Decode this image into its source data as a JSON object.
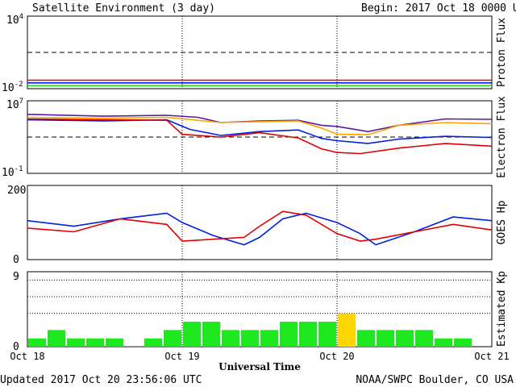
{
  "header": {
    "title": "Satellite Environment (3 day)",
    "begin": "Begin:  2017 Oct 18 0000 UTC"
  },
  "footer": {
    "updated": "Updated 2017 Oct 20 23:56:06 UTC",
    "source": "NOAA/SWPC Boulder, CO USA"
  },
  "x_axis": {
    "label": "Universal Time",
    "ticks": [
      "Oct 18",
      "Oct 19",
      "Oct 20",
      "Oct 21"
    ],
    "range_days": [
      0,
      3
    ]
  },
  "colors": {
    "red": "#e00000",
    "blue": "#0020e0",
    "green": "#20e020",
    "orange": "#ffa500",
    "purple": "#5a1a9a",
    "kp_green": "#1ee81e",
    "kp_yellow": "#ffd700"
  },
  "chart_data": [
    {
      "type": "line",
      "title": "Proton Flux",
      "ylabel": "Proton Flux",
      "yscale": "log",
      "ylim": [
        0.01,
        10000
      ],
      "ytick_labels": [
        {
          "base": "10",
          "exp": "4"
        },
        {
          "base": "10",
          "exp": "-2"
        }
      ],
      "threshold": 10,
      "series": [
        {
          "color": "#e00000",
          "x": [
            0,
            0.5,
            1,
            1.5,
            2,
            2.5,
            3
          ],
          "values": [
            0.05,
            0.05,
            0.05,
            0.05,
            0.05,
            0.05,
            0.05
          ]
        },
        {
          "color": "#0020e0",
          "x": [
            0,
            0.5,
            1,
            1.5,
            2,
            2.5,
            3
          ],
          "values": [
            0.03,
            0.03,
            0.03,
            0.03,
            0.03,
            0.03,
            0.03
          ]
        },
        {
          "color": "#20e020",
          "x": [
            0,
            0.5,
            1,
            1.5,
            2,
            2.5,
            3
          ],
          "values": [
            0.018,
            0.018,
            0.018,
            0.018,
            0.018,
            0.018,
            0.018
          ]
        }
      ]
    },
    {
      "type": "line",
      "title": "Electron Flux",
      "ylabel": "Electron Flux",
      "yscale": "log",
      "ylim": [
        0.1,
        10000000
      ],
      "ytick_labels": [
        {
          "base": "10",
          "exp": "7"
        },
        {
          "base": "10",
          "exp": "-1"
        }
      ],
      "threshold": 1000,
      "series": [
        {
          "color": "#5a1a9a",
          "x": [
            0,
            0.5,
            0.9,
            1.1,
            1.25,
            1.5,
            1.75,
            1.9,
            2.0,
            2.2,
            2.4,
            2.7,
            3.0
          ],
          "values": [
            320000,
            200000,
            250000,
            150000,
            40000,
            60000,
            70000,
            20000,
            15000,
            4000,
            20000,
            100000,
            90000
          ]
        },
        {
          "color": "#ffa500",
          "x": [
            0,
            0.5,
            0.9,
            1.1,
            1.25,
            1.5,
            1.75,
            1.9,
            2.0,
            2.2,
            2.4,
            2.7,
            3.0
          ],
          "values": [
            150000,
            120000,
            150000,
            70000,
            40000,
            50000,
            60000,
            10000,
            2000,
            1800,
            20000,
            40000,
            30000
          ]
        },
        {
          "color": "#0020e0",
          "x": [
            0,
            0.5,
            0.9,
            1.05,
            1.25,
            1.5,
            1.75,
            1.9,
            2.0,
            2.2,
            2.4,
            2.7,
            3.0
          ],
          "values": [
            80000,
            60000,
            80000,
            7000,
            1500,
            4000,
            6000,
            700,
            400,
            200,
            600,
            1200,
            900
          ]
        },
        {
          "color": "#e00000",
          "x": [
            0,
            0.5,
            0.9,
            1.0,
            1.25,
            1.5,
            1.75,
            1.9,
            2.0,
            2.15,
            2.4,
            2.7,
            3.0
          ],
          "values": [
            100000,
            80000,
            70000,
            2000,
            1000,
            3000,
            800,
            50,
            20,
            15,
            60,
            200,
            100
          ]
        }
      ]
    },
    {
      "type": "line",
      "title": "GOES Hp",
      "ylabel": "GOES Hp",
      "ylim": [
        0,
        200
      ],
      "ytick_labels": [
        "200",
        "0"
      ],
      "series": [
        {
          "color": "#0020e0",
          "x": [
            0,
            0.3,
            0.6,
            0.9,
            1.0,
            1.2,
            1.4,
            1.5,
            1.65,
            1.8,
            2.0,
            2.15,
            2.25,
            2.5,
            2.75,
            3.0
          ],
          "values": [
            105,
            90,
            110,
            125,
            100,
            65,
            40,
            60,
            110,
            125,
            100,
            70,
            40,
            75,
            115,
            105
          ]
        },
        {
          "color": "#e00000",
          "x": [
            0,
            0.3,
            0.6,
            0.9,
            1.0,
            1.2,
            1.4,
            1.5,
            1.65,
            1.8,
            2.0,
            2.15,
            2.25,
            2.5,
            2.75,
            3.0
          ],
          "values": [
            85,
            75,
            110,
            95,
            50,
            55,
            60,
            90,
            130,
            120,
            70,
            50,
            55,
            75,
            95,
            80
          ]
        }
      ]
    },
    {
      "type": "bar",
      "title": "Estimated Kp",
      "ylabel": "Estimated Kp",
      "ylim": [
        0,
        9
      ],
      "ytick_labels": [
        "9",
        "0"
      ],
      "bar_width_hours": 3,
      "values": [
        1,
        2,
        1,
        1,
        1,
        0.1,
        1,
        2,
        3,
        3,
        2,
        2,
        2,
        3,
        3,
        3,
        4,
        2,
        2,
        2,
        2,
        1,
        1,
        0
      ],
      "bar_colors": [
        "#1ee81e",
        "#1ee81e",
        "#1ee81e",
        "#1ee81e",
        "#1ee81e",
        "#1ee81e",
        "#1ee81e",
        "#1ee81e",
        "#1ee81e",
        "#1ee81e",
        "#1ee81e",
        "#1ee81e",
        "#1ee81e",
        "#1ee81e",
        "#1ee81e",
        "#1ee81e",
        "#ffd700",
        "#1ee81e",
        "#1ee81e",
        "#1ee81e",
        "#1ee81e",
        "#1ee81e",
        "#1ee81e",
        "#1ee81e"
      ],
      "reference_levels": [
        4,
        6,
        8
      ]
    }
  ]
}
